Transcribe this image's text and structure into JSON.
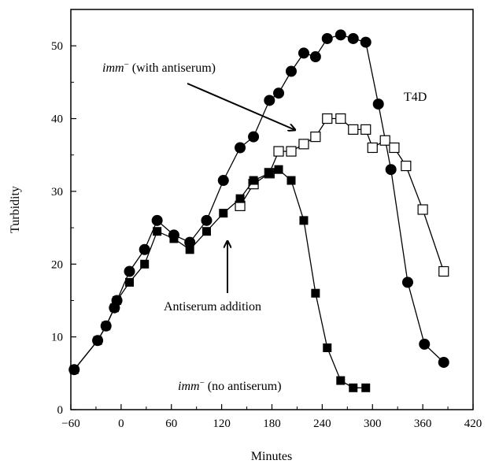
{
  "chart_data": {
    "type": "line",
    "title": "",
    "xlabel": "Minutes",
    "ylabel": "Turbidity",
    "xlim": [
      -60,
      420
    ],
    "ylim": [
      0,
      55
    ],
    "xticks": [
      -60,
      0,
      60,
      120,
      180,
      240,
      300,
      360,
      420
    ],
    "xtick_labels": [
      "−60",
      "0",
      "60",
      "120",
      "180",
      "240",
      "300",
      "360",
      "420"
    ],
    "yticks": [
      0,
      10,
      20,
      30,
      40,
      50
    ],
    "ytick_labels": [
      "0",
      "10",
      "20",
      "30",
      "40",
      "50"
    ],
    "grid": false,
    "series": [
      {
        "name": "T4D",
        "marker": "filled-circle",
        "color": "#000000",
        "x": [
          -56,
          -28,
          -18,
          -8,
          -5,
          10,
          28,
          43,
          63,
          82,
          102,
          122,
          142,
          158,
          177,
          188,
          203,
          218,
          232,
          246,
          262,
          277,
          292,
          307,
          322,
          342,
          362,
          385
        ],
        "y": [
          5.5,
          9.5,
          11.5,
          14,
          15,
          19,
          22,
          26,
          24,
          23,
          26,
          31.5,
          36,
          37.5,
          42.5,
          43.5,
          46.5,
          49,
          48.5,
          51,
          51.5,
          51,
          50.5,
          42,
          33,
          17.5,
          9,
          6.5
        ]
      },
      {
        "name": "imm− (with antiserum)",
        "marker": "open-square",
        "color": "#000000",
        "x": [
          142,
          158,
          177,
          188,
          203,
          218,
          232,
          246,
          262,
          277,
          292,
          300,
          315,
          326,
          340,
          360,
          385
        ],
        "y": [
          28,
          31,
          32.5,
          35.5,
          35.5,
          36.5,
          37.5,
          40,
          40,
          38.5,
          38.5,
          36,
          37,
          36,
          33.5,
          27.5,
          19
        ]
      },
      {
        "name": "imm− (no antiserum)",
        "marker": "filled-square",
        "color": "#000000",
        "x": [
          -56,
          -28,
          -18,
          -8,
          -5,
          10,
          28,
          43,
          63,
          82,
          102,
          122,
          142,
          158,
          177,
          188,
          203,
          218,
          232,
          246,
          262,
          277,
          292
        ],
        "y": [
          5.5,
          9.5,
          11.5,
          14,
          15,
          17.5,
          20,
          24.5,
          23.5,
          22,
          24.5,
          27,
          29,
          31.5,
          32.5,
          33,
          31.5,
          26,
          16,
          8.5,
          4,
          3,
          3
        ]
      }
    ],
    "annotations": [
      {
        "id": "with-antiserum",
        "prefix": "imm",
        "sup": "−",
        "rest": " (with antiserum)"
      },
      {
        "id": "t4d",
        "text": "T4D"
      },
      {
        "id": "antiserum-addition",
        "text": "Antiserum addition"
      },
      {
        "id": "no-antiserum",
        "prefix": "imm",
        "sup": "−",
        "rest": " (no antiserum)"
      }
    ]
  }
}
